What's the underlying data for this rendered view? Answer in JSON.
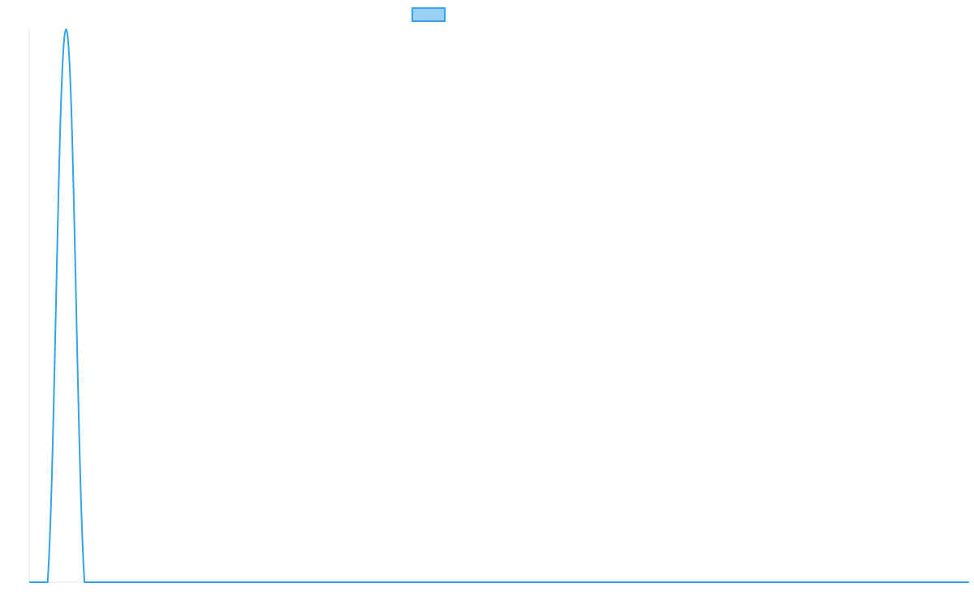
{
  "chart_data": {
    "type": "line",
    "title": "",
    "xlabel": "",
    "ylabel": "",
    "legend": {
      "placement": "top",
      "entries": [
        ""
      ]
    },
    "grid": false,
    "ylim": [
      0,
      1
    ],
    "series": [
      {
        "values": [
          0,
          0,
          1,
          0,
          0,
          0,
          0,
          0,
          0,
          0,
          0,
          0,
          0,
          0,
          0,
          0,
          0,
          0,
          0,
          0,
          0,
          0,
          0,
          0,
          0,
          0,
          0,
          0,
          0,
          0,
          0,
          0,
          0,
          0,
          0,
          0,
          0,
          0,
          0,
          0,
          0,
          0,
          0,
          0,
          0,
          0,
          0,
          0,
          0,
          0,
          0,
          0
        ],
        "color": "#36a2eb",
        "fill_color": "#9ad0f5"
      }
    ]
  }
}
